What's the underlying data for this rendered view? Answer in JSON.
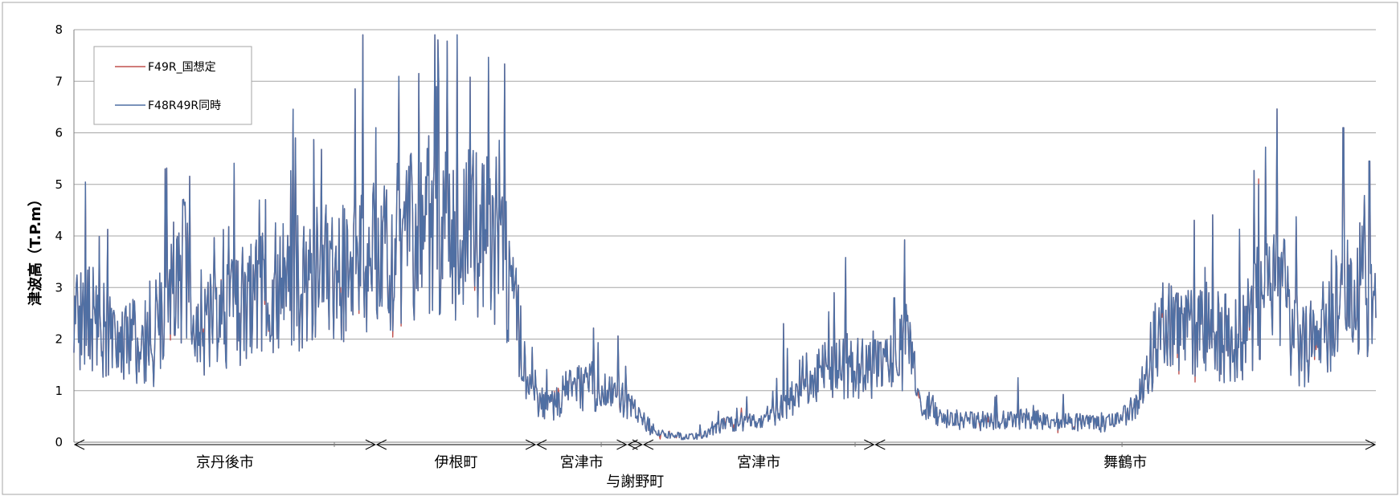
{
  "chart_data": {
    "type": "line",
    "title": "",
    "ylabel": "津波高（T.P.m）",
    "xlabel": "",
    "ylim": [
      0,
      8
    ],
    "yticks": [
      0,
      1,
      2,
      3,
      4,
      5,
      6,
      7,
      8
    ],
    "grid": true,
    "legend_position": "top-left",
    "series": [
      {
        "name": "F49R_国想定",
        "color": "#C0504D",
        "keypoints": [
          [
            0,
            2.5
          ],
          [
            0.02,
            2.3
          ],
          [
            0.035,
            2.0
          ],
          [
            0.055,
            1.9
          ],
          [
            0.06,
            1.6
          ],
          [
            0.07,
            2.8
          ],
          [
            0.085,
            3.4
          ],
          [
            0.1,
            2.2
          ],
          [
            0.13,
            2.7
          ],
          [
            0.16,
            3.0
          ],
          [
            0.19,
            3.2
          ],
          [
            0.21,
            3.3
          ],
          [
            0.225,
            3.4
          ],
          [
            0.245,
            3.7
          ],
          [
            0.26,
            3.9
          ],
          [
            0.27,
            4.2
          ],
          [
            0.28,
            4.0
          ],
          [
            0.3,
            4.2
          ],
          [
            0.31,
            4.4
          ],
          [
            0.32,
            4.0
          ],
          [
            0.33,
            3.6
          ],
          [
            0.335,
            3.0
          ],
          [
            0.34,
            2.5
          ],
          [
            0.345,
            1.5
          ],
          [
            0.35,
            1.0
          ],
          [
            0.355,
            0.75
          ],
          [
            0.37,
            0.75
          ],
          [
            0.38,
            1.0
          ],
          [
            0.39,
            1.1
          ],
          [
            0.41,
            1.0
          ],
          [
            0.42,
            0.85
          ],
          [
            0.43,
            0.6
          ],
          [
            0.44,
            0.3
          ],
          [
            0.45,
            0.15
          ],
          [
            0.465,
            0.12
          ],
          [
            0.475,
            0.1
          ],
          [
            0.485,
            0.15
          ],
          [
            0.5,
            0.35
          ],
          [
            0.52,
            0.4
          ],
          [
            0.53,
            0.4
          ],
          [
            0.545,
            0.7
          ],
          [
            0.56,
            1.2
          ],
          [
            0.575,
            1.4
          ],
          [
            0.59,
            1.5
          ],
          [
            0.605,
            1.4
          ],
          [
            0.62,
            1.55
          ],
          [
            0.63,
            1.6
          ],
          [
            0.64,
            1.9
          ],
          [
            0.65,
            0.8
          ],
          [
            0.67,
            0.45
          ],
          [
            0.7,
            0.4
          ],
          [
            0.73,
            0.45
          ],
          [
            0.76,
            0.4
          ],
          [
            0.79,
            0.35
          ],
          [
            0.8,
            0.4
          ],
          [
            0.815,
            0.6
          ],
          [
            0.825,
            1.5
          ],
          [
            0.835,
            2.3
          ],
          [
            0.85,
            2.0
          ],
          [
            0.87,
            2.4
          ],
          [
            0.885,
            2.0
          ],
          [
            0.9,
            2.1
          ],
          [
            0.915,
            3.0
          ],
          [
            0.925,
            3.3
          ],
          [
            0.935,
            2.2
          ],
          [
            0.945,
            1.8
          ],
          [
            0.96,
            2.2
          ],
          [
            0.975,
            2.7
          ],
          [
            0.99,
            3.0
          ],
          [
            1.0,
            2.8
          ]
        ]
      },
      {
        "name": "F48R49R同時",
        "color": "#4F6FA3",
        "keypoints": [
          [
            0,
            2.5
          ],
          [
            0.02,
            2.3
          ],
          [
            0.035,
            2.0
          ],
          [
            0.055,
            1.9
          ],
          [
            0.06,
            1.6
          ],
          [
            0.07,
            2.8
          ],
          [
            0.085,
            3.4
          ],
          [
            0.1,
            2.2
          ],
          [
            0.13,
            2.7
          ],
          [
            0.16,
            3.0
          ],
          [
            0.19,
            3.2
          ],
          [
            0.21,
            3.3
          ],
          [
            0.225,
            3.4
          ],
          [
            0.245,
            3.7
          ],
          [
            0.26,
            3.9
          ],
          [
            0.27,
            4.2
          ],
          [
            0.28,
            4.0
          ],
          [
            0.3,
            4.2
          ],
          [
            0.31,
            4.4
          ],
          [
            0.32,
            4.0
          ],
          [
            0.33,
            3.6
          ],
          [
            0.335,
            3.0
          ],
          [
            0.34,
            2.5
          ],
          [
            0.345,
            1.5
          ],
          [
            0.35,
            1.0
          ],
          [
            0.355,
            0.75
          ],
          [
            0.37,
            0.75
          ],
          [
            0.38,
            1.0
          ],
          [
            0.39,
            1.1
          ],
          [
            0.41,
            1.0
          ],
          [
            0.42,
            0.85
          ],
          [
            0.43,
            0.6
          ],
          [
            0.44,
            0.3
          ],
          [
            0.45,
            0.15
          ],
          [
            0.465,
            0.12
          ],
          [
            0.475,
            0.1
          ],
          [
            0.485,
            0.15
          ],
          [
            0.5,
            0.35
          ],
          [
            0.52,
            0.4
          ],
          [
            0.53,
            0.4
          ],
          [
            0.545,
            0.7
          ],
          [
            0.56,
            1.2
          ],
          [
            0.575,
            1.4
          ],
          [
            0.59,
            1.5
          ],
          [
            0.605,
            1.4
          ],
          [
            0.62,
            1.55
          ],
          [
            0.63,
            1.6
          ],
          [
            0.64,
            1.9
          ],
          [
            0.65,
            0.8
          ],
          [
            0.67,
            0.45
          ],
          [
            0.7,
            0.4
          ],
          [
            0.73,
            0.45
          ],
          [
            0.76,
            0.4
          ],
          [
            0.79,
            0.35
          ],
          [
            0.8,
            0.4
          ],
          [
            0.815,
            0.6
          ],
          [
            0.825,
            1.5
          ],
          [
            0.835,
            2.3
          ],
          [
            0.85,
            2.0
          ],
          [
            0.87,
            2.4
          ],
          [
            0.885,
            2.0
          ],
          [
            0.9,
            2.1
          ],
          [
            0.915,
            3.0
          ],
          [
            0.925,
            3.3
          ],
          [
            0.935,
            2.2
          ],
          [
            0.945,
            1.8
          ],
          [
            0.96,
            2.2
          ],
          [
            0.975,
            2.7
          ],
          [
            0.99,
            3.0
          ],
          [
            1.0,
            2.8
          ]
        ],
        "peaks": [
          [
            0.07,
            5.3
          ],
          [
            0.17,
            5.9
          ],
          [
            0.232,
            6.1
          ],
          [
            0.265,
            7.15
          ],
          [
            0.28,
            7.0
          ],
          [
            0.545,
            2.3
          ],
          [
            0.63,
            2.8
          ],
          [
            0.725,
            1.25
          ],
          [
            0.975,
            6.1
          ],
          [
            0.995,
            5.45
          ]
        ]
      }
    ],
    "regions": [
      {
        "label": "京丹後市",
        "start": 0.0,
        "end": 0.232
      },
      {
        "label": "伊根町",
        "start": 0.232,
        "end": 0.355
      },
      {
        "label": "宮津市",
        "start": 0.355,
        "end": 0.425
      },
      {
        "label": "与謝野町",
        "start": 0.425,
        "end": 0.437
      },
      {
        "label": "宮津市",
        "start": 0.437,
        "end": 0.615
      },
      {
        "label": "舞鶴市",
        "start": 0.615,
        "end": 1.0
      }
    ]
  }
}
